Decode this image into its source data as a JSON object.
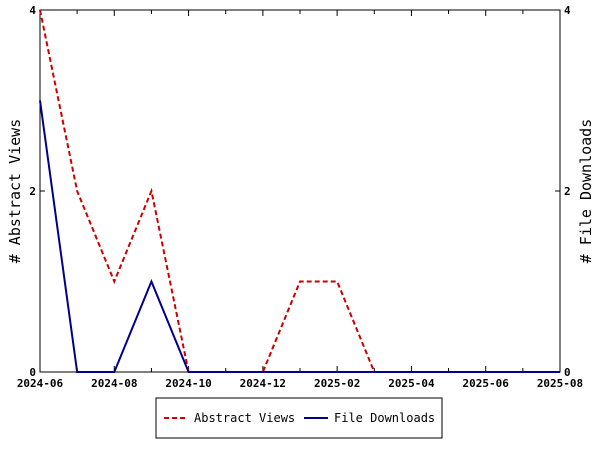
{
  "chart_data": {
    "type": "line",
    "x": [
      "2024-06",
      "2024-07",
      "2024-08",
      "2024-09",
      "2024-10",
      "2024-11",
      "2024-12",
      "2025-01",
      "2025-02",
      "2025-03",
      "2025-04",
      "2025-05",
      "2025-06",
      "2025-07",
      "2025-08"
    ],
    "x_tick_labels": [
      "2024-06",
      "2024-08",
      "2024-10",
      "2024-12",
      "2025-02",
      "2025-04",
      "2025-06",
      "2025-08"
    ],
    "series": [
      {
        "name": "Abstract Views",
        "color": "#cc0000",
        "dash": "dashed",
        "axis": "left",
        "values": [
          4,
          2,
          1,
          2,
          0,
          0,
          0,
          1,
          1,
          0,
          0,
          0,
          0,
          0,
          0
        ]
      },
      {
        "name": "File Downloads",
        "color": "#00008b",
        "dash": "solid",
        "axis": "right",
        "values": [
          3,
          0,
          0,
          1,
          0,
          0,
          0,
          0,
          0,
          0,
          0,
          0,
          0,
          0,
          0
        ]
      }
    ],
    "ylabel": "# Abstract Views",
    "y2label": "# File Downloads",
    "ylim": [
      0,
      4
    ],
    "y2lim": [
      0,
      4
    ],
    "y_ticks": [
      0,
      2,
      4
    ],
    "y2_ticks": [
      0,
      2,
      4
    ],
    "grid": false,
    "legend_position": "bottom"
  }
}
